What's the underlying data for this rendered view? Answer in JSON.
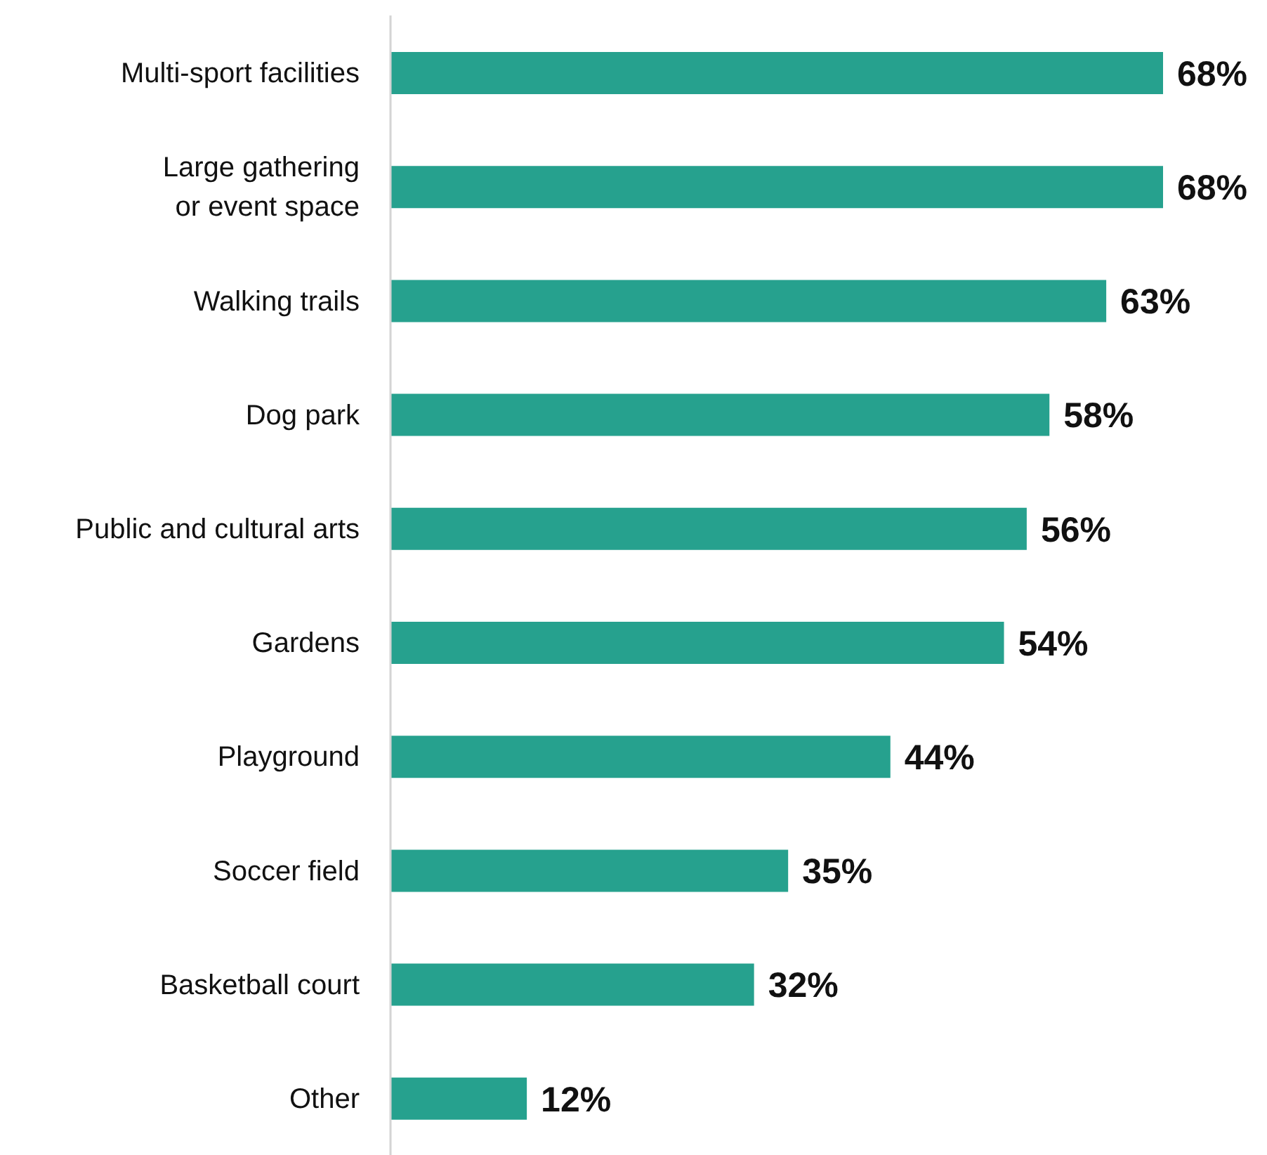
{
  "chart_data": {
    "type": "bar",
    "orientation": "horizontal",
    "categories": [
      "Multi-sport facilities",
      "Large gathering\nor event space",
      "Walking trails",
      "Dog park",
      "Public and cultural arts",
      "Gardens",
      "Playground",
      "Soccer field",
      "Basketball court",
      "Other"
    ],
    "values": [
      68,
      68,
      63,
      58,
      56,
      54,
      44,
      35,
      32,
      12
    ],
    "value_labels": [
      "68%",
      "68%",
      "63%",
      "58%",
      "56%",
      "54%",
      "44%",
      "35%",
      "32%",
      "12%"
    ],
    "color": "#26a18e",
    "grid": false,
    "legend": false
  }
}
